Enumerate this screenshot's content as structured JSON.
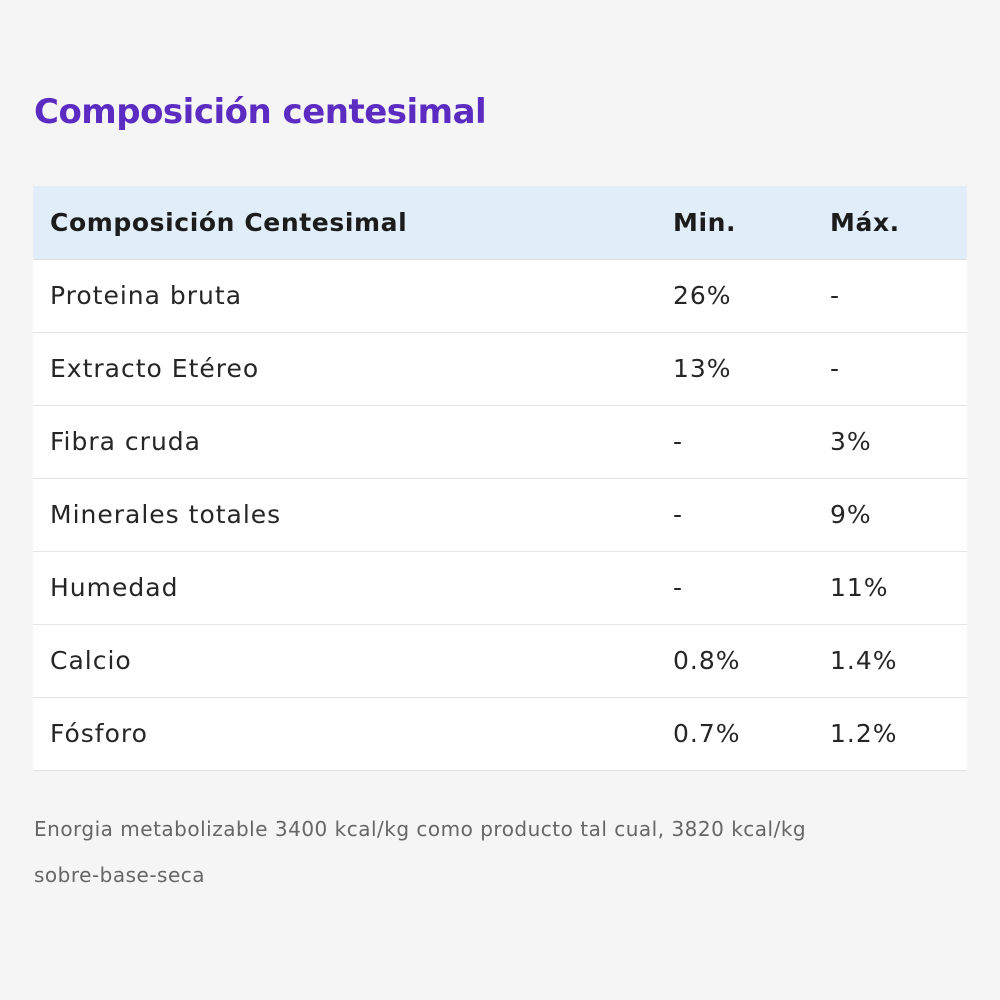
{
  "section": {
    "title": "Composición centesimal"
  },
  "table": {
    "headers": [
      "Composición Centesimal",
      "Min.",
      "Máx."
    ],
    "rows": [
      {
        "name": "Proteina bruta",
        "min": "26%",
        "max": "-"
      },
      {
        "name": "Extracto Etéreo",
        "min": "13%",
        "max": "-"
      },
      {
        "name": "Fibra cruda",
        "min": "-",
        "max": "3%"
      },
      {
        "name": "Minerales totales",
        "min": "-",
        "max": "9%"
      },
      {
        "name": "Humedad",
        "min": "-",
        "max": "11%"
      },
      {
        "name": "Calcio",
        "min": "0.8%",
        "max": "1.4%"
      },
      {
        "name": "Fósforo",
        "min": "0.7%",
        "max": "1.2%"
      }
    ]
  },
  "note": {
    "line1": "Enorgia metabolizable 3400 kcal/kg como producto tal cual, 3820 kcal/kg",
    "line2": "sobre-base-seca"
  },
  "colors": {
    "title": "#5b2bc2",
    "header_bg": "#e1edf8",
    "page_bg": "#f5f5f6"
  }
}
